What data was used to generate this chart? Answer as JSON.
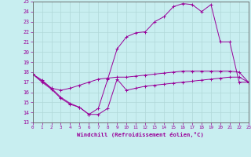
{
  "xlabel": "Windchill (Refroidissement éolien,°C)",
  "xlim": [
    0,
    23
  ],
  "ylim": [
    13,
    25
  ],
  "yticks": [
    13,
    14,
    15,
    16,
    17,
    18,
    19,
    20,
    21,
    22,
    23,
    24,
    25
  ],
  "xticks": [
    0,
    1,
    2,
    3,
    4,
    5,
    6,
    7,
    8,
    9,
    10,
    11,
    12,
    13,
    14,
    15,
    16,
    17,
    18,
    19,
    20,
    21,
    22,
    23
  ],
  "bg_color": "#c8eef0",
  "line_color": "#990099",
  "grid_color": "#aadddd",
  "curve1_x": [
    0,
    1,
    2,
    3,
    4,
    5,
    6,
    7,
    8,
    9,
    10,
    11,
    12,
    13,
    14,
    15,
    16,
    17,
    18,
    19,
    20,
    21,
    22,
    23
  ],
  "curve1_y": [
    17.8,
    17.2,
    16.4,
    16.2,
    16.4,
    16.7,
    17.0,
    17.3,
    17.4,
    17.5,
    17.5,
    17.6,
    17.7,
    17.8,
    17.9,
    18.0,
    18.1,
    18.1,
    18.1,
    18.1,
    18.1,
    18.1,
    18.0,
    17.0
  ],
  "curve2_x": [
    0,
    1,
    2,
    3,
    4,
    5,
    6,
    7,
    8,
    9,
    10,
    11,
    12,
    13,
    14,
    15,
    16,
    17,
    18,
    19,
    20,
    21,
    22,
    23
  ],
  "curve2_y": [
    17.8,
    17.0,
    16.3,
    15.4,
    14.8,
    14.5,
    13.8,
    13.8,
    14.4,
    17.3,
    16.2,
    16.4,
    16.6,
    16.7,
    16.8,
    16.9,
    17.0,
    17.1,
    17.2,
    17.3,
    17.4,
    17.5,
    17.5,
    17.0
  ],
  "curve3_x": [
    0,
    2,
    3,
    4,
    5,
    6,
    7,
    8,
    9,
    10,
    11,
    12,
    13,
    14,
    15,
    16,
    17,
    18,
    19,
    20,
    21,
    22,
    23
  ],
  "curve3_y": [
    17.8,
    16.4,
    15.5,
    14.9,
    14.5,
    13.8,
    14.4,
    17.3,
    20.3,
    21.5,
    21.9,
    22.0,
    23.0,
    23.5,
    24.5,
    24.8,
    24.7,
    24.0,
    24.7,
    21.0,
    21.0,
    17.0,
    17.0
  ]
}
